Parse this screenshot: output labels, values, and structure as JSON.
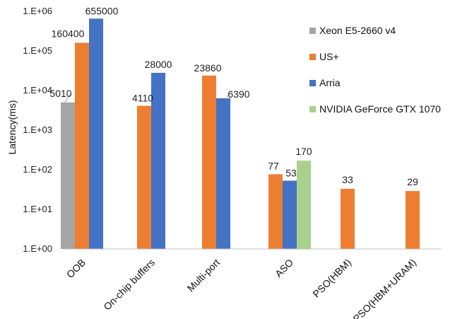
{
  "chart_data": {
    "type": "bar",
    "scale": "log10",
    "ylabel": "Latency(ms)",
    "ylim": [
      1,
      1000000
    ],
    "yticks": [
      "1.E+00",
      "1.E+01",
      "1.E+02",
      "1.E+03",
      "1.E+04",
      "1.E+05",
      "1.E+06"
    ],
    "grid": false,
    "legend_position": "right",
    "categories": [
      "OOB",
      "On-chip buffers",
      "Multi-port",
      "ASO",
      "PSO(HBM)",
      "PSO(HBM+URAM)"
    ],
    "series": [
      {
        "name": "Xeon E5-2660 v4",
        "color": "#a5a5a5",
        "values": [
          5010,
          null,
          null,
          null,
          null,
          null
        ]
      },
      {
        "name": "US+",
        "color": "#ed7d31",
        "values": [
          160400,
          4110,
          23860,
          77,
          33,
          29
        ]
      },
      {
        "name": "Arria",
        "color": "#4472c4",
        "values": [
          655000,
          28000,
          6390,
          53,
          null,
          null
        ]
      },
      {
        "name": "NVIDIA GeForce GTX 1070",
        "color": "#a9d18e",
        "values": [
          null,
          null,
          null,
          170,
          null,
          null
        ]
      }
    ],
    "data_labels": [
      {
        "category": "OOB",
        "series": "Xeon E5-2660 v4",
        "text": "5010"
      },
      {
        "category": "OOB",
        "series": "US+",
        "text": "160400"
      },
      {
        "category": "OOB",
        "series": "Arria",
        "text": "655000"
      },
      {
        "category": "On-chip buffers",
        "series": "US+",
        "text": "4110"
      },
      {
        "category": "On-chip buffers",
        "series": "Arria",
        "text": "28000"
      },
      {
        "category": "Multi-port",
        "series": "US+",
        "text": "23860"
      },
      {
        "category": "Multi-port",
        "series": "Arria",
        "text": "6390"
      },
      {
        "category": "ASO",
        "series": "US+",
        "text": "77"
      },
      {
        "category": "ASO",
        "series": "Arria",
        "text": "53"
      },
      {
        "category": "ASO",
        "series": "NVIDIA GeForce GTX 1070",
        "text": "170"
      },
      {
        "category": "PSO(HBM)",
        "series": "US+",
        "text": "33"
      },
      {
        "category": "PSO(HBM+URAM)",
        "series": "US+",
        "text": "29"
      }
    ]
  }
}
